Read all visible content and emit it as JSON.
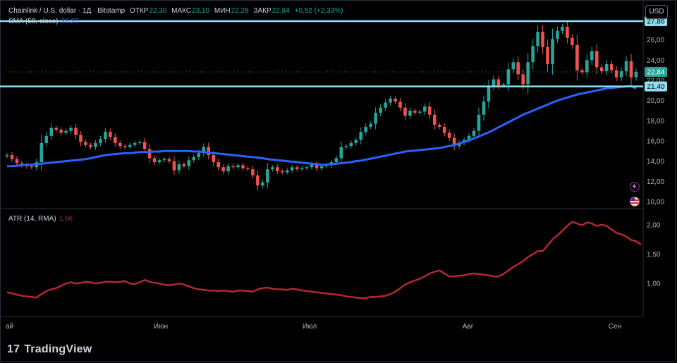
{
  "header": {
    "symbol": "Chainlink / U.S. dollar · 1Д · Bitstamp",
    "open_label": "ОТКР",
    "open": "22,30",
    "high_label": "МАКС",
    "high": "23,10",
    "low_label": "МИН",
    "low": "22,28",
    "close_label": "ЗАКР",
    "close": "22,84",
    "change": "+0,52 (+2,33%)"
  },
  "indicators": {
    "sma_label": "SMA (50, close)",
    "sma_value": "21,20",
    "atr_label": "ATR (14, RMA)",
    "atr_value": "1,66"
  },
  "currency_button": "USD",
  "price_tags": {
    "upper_level": "27,86",
    "last_price": "22,84",
    "lower_level": "21,40"
  },
  "branding": {
    "name": "TradingView"
  },
  "colors": {
    "up": "#26a69a",
    "down": "#ef5350",
    "sma": "#2962ff",
    "atr": "#b22833",
    "level": "#8fe0f0"
  },
  "chart_data": {
    "type": "candlestick",
    "symbol": "Chainlink / U.S. dollar",
    "interval": "1Д",
    "price_axis": {
      "ticks": [
        "10,00",
        "12,00",
        "14,00",
        "16,00",
        "18,00",
        "20,00",
        "22,00",
        "24,00",
        "26,00"
      ],
      "range": [
        9.3,
        28.7
      ]
    },
    "atr_axis": {
      "ticks": [
        "1,00",
        "1,50",
        "2,00"
      ],
      "range": [
        0.45,
        2.25
      ]
    },
    "x_labels": [
      "ай",
      "Июн",
      "Июл",
      "Авг",
      "Сен"
    ],
    "horizontal_levels": [
      27.86,
      21.4
    ],
    "last_price": 22.84,
    "closes": [
      14.6,
      14.2,
      13.8,
      13.6,
      13.5,
      13.4,
      13.9,
      15.8,
      16.5,
      17.3,
      17.1,
      16.8,
      17.0,
      17.3,
      16.6,
      15.9,
      15.6,
      15.4,
      15.8,
      16.2,
      16.9,
      16.4,
      15.8,
      15.5,
      15.4,
      15.6,
      15.8,
      15.9,
      15.2,
      14.3,
      13.9,
      14.1,
      14.2,
      14.0,
      13.1,
      13.7,
      13.5,
      14.1,
      14.4,
      14.8,
      15.4,
      14.6,
      13.9,
      13.4,
      13.0,
      13.5,
      13.4,
      13.6,
      13.3,
      13.2,
      12.6,
      11.6,
      11.9,
      13.2,
      13.4,
      13.0,
      12.9,
      13.1,
      13.4,
      13.2,
      13.3,
      13.4,
      13.7,
      13.3,
      13.5,
      13.6,
      13.9,
      14.3,
      15.4,
      15.5,
      15.8,
      16.1,
      16.9,
      17.4,
      17.7,
      18.8,
      19.3,
      19.8,
      20.2,
      19.9,
      19.3,
      18.5,
      19.0,
      18.8,
      18.9,
      19.4,
      18.6,
      17.6,
      17.4,
      16.8,
      16.3,
      15.5,
      15.8,
      16.1,
      16.5,
      17.0,
      18.6,
      19.9,
      21.4,
      22.1,
      21.5,
      21.6,
      23.1,
      23.8,
      22.6,
      21.6,
      23.8,
      25.4,
      26.8,
      25.3,
      23.6,
      26.1,
      26.9,
      27.3,
      26.2,
      25.5,
      23.0,
      22.8,
      24.0,
      24.9,
      23.3,
      22.9,
      23.6,
      23.0,
      22.3,
      22.9,
      23.9,
      22.3,
      22.84
    ],
    "sma_50": [
      13.5,
      13.5,
      13.55,
      13.6,
      13.65,
      13.65,
      13.7,
      13.75,
      13.8,
      13.85,
      13.9,
      13.95,
      14.0,
      14.05,
      14.1,
      14.15,
      14.2,
      14.3,
      14.4,
      14.5,
      14.6,
      14.65,
      14.7,
      14.75,
      14.8,
      14.8,
      14.85,
      14.9,
      14.9,
      14.9,
      14.95,
      14.95,
      15.0,
      15.0,
      15.0,
      15.0,
      15.0,
      15.0,
      14.95,
      14.95,
      14.9,
      14.85,
      14.8,
      14.75,
      14.7,
      14.65,
      14.6,
      14.55,
      14.5,
      14.45,
      14.4,
      14.35,
      14.3,
      14.2,
      14.15,
      14.1,
      14.05,
      14.0,
      13.95,
      13.9,
      13.85,
      13.8,
      13.75,
      13.7,
      13.65,
      13.65,
      13.7,
      13.75,
      13.8,
      13.85,
      13.9,
      14.0,
      14.05,
      14.15,
      14.25,
      14.35,
      14.45,
      14.55,
      14.65,
      14.75,
      14.85,
      14.95,
      15.0,
      15.05,
      15.1,
      15.15,
      15.2,
      15.25,
      15.3,
      15.4,
      15.5,
      15.6,
      15.75,
      15.9,
      16.05,
      16.25,
      16.45,
      16.65,
      16.85,
      17.1,
      17.35,
      17.6,
      17.85,
      18.1,
      18.35,
      18.6,
      18.8,
      19.0,
      19.2,
      19.4,
      19.6,
      19.8,
      20.0,
      20.15,
      20.3,
      20.45,
      20.6,
      20.7,
      20.8,
      20.9,
      21.0,
      21.1,
      21.2,
      21.25,
      21.3,
      21.35,
      21.4,
      21.45,
      21.2
    ],
    "atr_14": [
      0.85,
      0.83,
      0.81,
      0.79,
      0.78,
      0.77,
      0.76,
      0.82,
      0.87,
      0.9,
      0.92,
      0.96,
      1.0,
      1.02,
      1.0,
      1.01,
      1.03,
      1.02,
      1.0,
      1.01,
      1.03,
      1.03,
      1.02,
      1.03,
      1.04,
      1.0,
      0.99,
      1.02,
      1.06,
      1.03,
      1.01,
      1.0,
      0.98,
      0.97,
      0.98,
      1.0,
      0.98,
      0.95,
      0.92,
      0.9,
      0.89,
      0.88,
      0.88,
      0.87,
      0.88,
      0.87,
      0.86,
      0.88,
      0.88,
      0.87,
      0.86,
      0.9,
      0.92,
      0.93,
      0.91,
      0.9,
      0.9,
      0.89,
      0.91,
      0.9,
      0.88,
      0.87,
      0.86,
      0.85,
      0.84,
      0.83,
      0.82,
      0.81,
      0.8,
      0.78,
      0.77,
      0.76,
      0.75,
      0.75,
      0.77,
      0.77,
      0.78,
      0.79,
      0.82,
      0.86,
      0.92,
      0.98,
      1.02,
      1.05,
      1.08,
      1.12,
      1.17,
      1.2,
      1.22,
      1.17,
      1.12,
      1.12,
      1.13,
      1.14,
      1.16,
      1.17,
      1.16,
      1.15,
      1.14,
      1.12,
      1.12,
      1.16,
      1.22,
      1.28,
      1.33,
      1.38,
      1.45,
      1.5,
      1.55,
      1.55,
      1.65,
      1.75,
      1.82,
      1.9,
      1.98,
      2.05,
      2.02,
      1.99,
      2.04,
      2.02,
      1.98,
      2.0,
      1.98,
      1.92,
      1.86,
      1.84,
      1.8,
      1.74,
      1.72,
      1.66
    ]
  }
}
